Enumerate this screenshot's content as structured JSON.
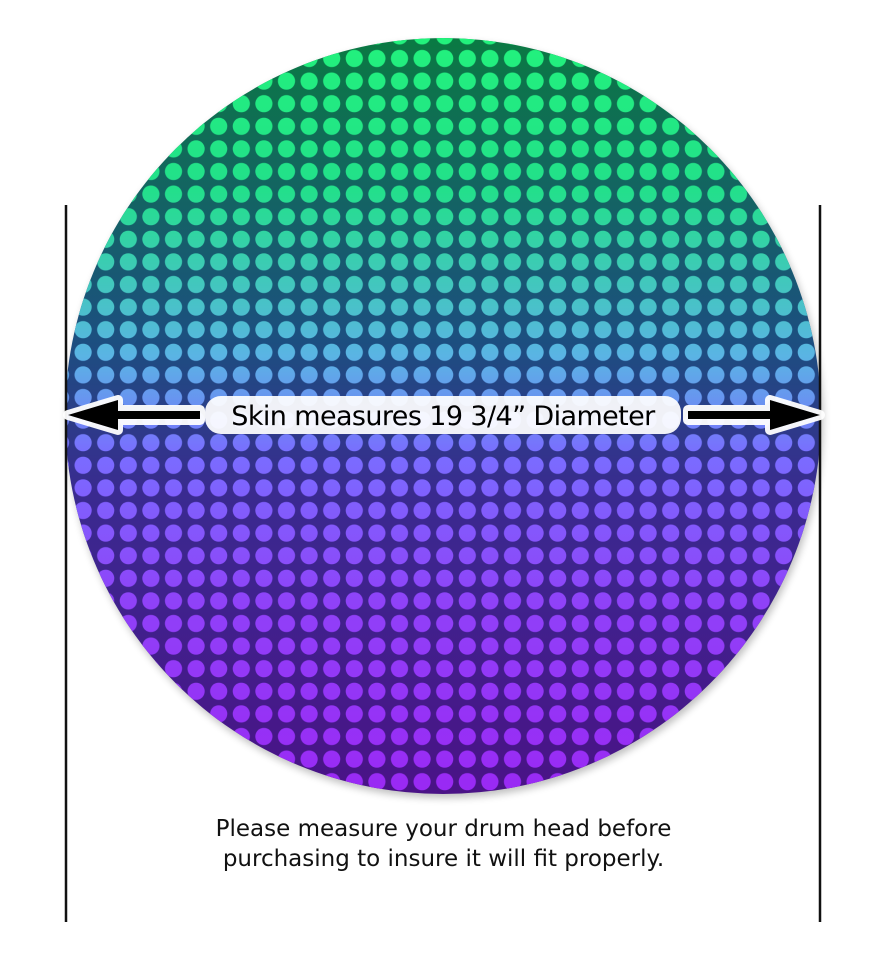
{
  "measure_label": "Skin measures 19 3/4” Diameter",
  "note": {
    "line1": "Please measure your drum head before",
    "line2": "purchasing to insure it will fit properly."
  },
  "colors": {
    "top_dot": "#22f27c",
    "top_bg": "#0a7a42",
    "mid_dot": "#5ab4e4",
    "mid_bg": "#1c4f80",
    "low_dot": "#8a5cff",
    "low_bg": "#3a2a90",
    "bottom_dot": "#9a28f4",
    "bottom_bg": "#4a1286"
  },
  "icons": [
    "arrow-left-icon",
    "arrow-right-icon"
  ]
}
